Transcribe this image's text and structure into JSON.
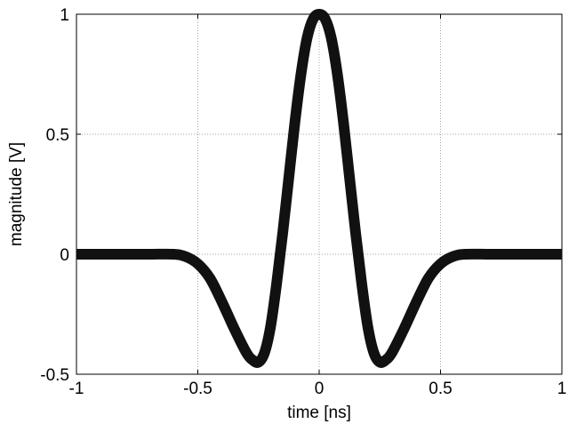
{
  "chart_data": {
    "type": "line",
    "title": "",
    "xlabel": "time [ns]",
    "ylabel": "magnitude [V]",
    "xlim": [
      -1,
      1
    ],
    "ylim": [
      -0.5,
      1
    ],
    "x_ticks": [
      -1,
      -0.5,
      0,
      0.5,
      1
    ],
    "x_tick_labels": [
      "-1",
      "-0.5",
      "0",
      "0.5",
      "1"
    ],
    "y_ticks": [
      -0.5,
      0,
      0.5,
      1
    ],
    "y_tick_labels": [
      "-0.5",
      "0",
      "0.5",
      "1"
    ],
    "grid": true,
    "legend": "none",
    "line_color": "#111111",
    "series": [
      {
        "x": [
          -1.0,
          -0.9,
          -0.8,
          -0.7,
          -0.6,
          -0.55,
          -0.5,
          -0.45,
          -0.4,
          -0.35,
          -0.3,
          -0.275,
          -0.25,
          -0.225,
          -0.2,
          -0.175,
          -0.15,
          -0.125,
          -0.1,
          -0.075,
          -0.05,
          -0.025,
          0.0,
          0.025,
          0.05,
          0.075,
          0.1,
          0.125,
          0.15,
          0.175,
          0.2,
          0.225,
          0.25,
          0.275,
          0.3,
          0.35,
          0.4,
          0.45,
          0.5,
          0.55,
          0.6,
          0.7,
          0.8,
          0.9,
          1.0
        ],
        "y": [
          0.0,
          0.0,
          0.0,
          0.0,
          0.0,
          -0.01,
          -0.04,
          -0.1,
          -0.2,
          -0.31,
          -0.41,
          -0.44,
          -0.45,
          -0.41,
          -0.3,
          -0.12,
          0.09,
          0.32,
          0.55,
          0.75,
          0.9,
          0.98,
          1.0,
          0.98,
          0.9,
          0.75,
          0.55,
          0.32,
          0.09,
          -0.12,
          -0.3,
          -0.41,
          -0.45,
          -0.44,
          -0.41,
          -0.31,
          -0.2,
          -0.1,
          -0.04,
          -0.01,
          0.0,
          0.0,
          0.0,
          0.0,
          0.0
        ]
      }
    ]
  }
}
